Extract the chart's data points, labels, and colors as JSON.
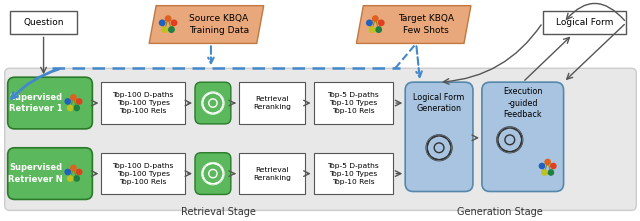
{
  "fig_width": 6.4,
  "fig_height": 2.21,
  "dpi": 100,
  "bg_white": "#ffffff",
  "green_box": "#5cb85c",
  "blue_box": "#a8c4e0",
  "orange_box": "#e8a87c",
  "dashed_arrow_color": "#4488cc",
  "retrieval_stage_label": "Retrieval Stage",
  "generation_stage_label": "Generation Stage",
  "question_label": "Question",
  "source_kbqa_label": "Source KBQA\nTraining Data",
  "target_kbqa_label": "Target KBQA\nFew Shots",
  "logical_form_top_label": "Logical Form",
  "sup_ret1_label": "Supervised\nRetriever 1",
  "sup_retN_label": "Supervised\nRetriever N",
  "top100_1_label": "Top-100 D-paths\nTop-100 Types\nTop-100 Rels",
  "top100_2_label": "Top-100 D-paths\nTop-100 Types\nTop-100 Rels",
  "retrieval_reranking_label": "Retrieval\nReranking",
  "top5_1_label": "Top-5 D-paths\nTop-10 Types\nTop-10 Rels",
  "top5_2_label": "Top-5 D-paths\nTop-10 Types\nTop-10 Rels",
  "logical_form_gen_label": "Logical Form\nGeneration",
  "execution_feedback_label": "Execution\n-guided\nFeedback"
}
